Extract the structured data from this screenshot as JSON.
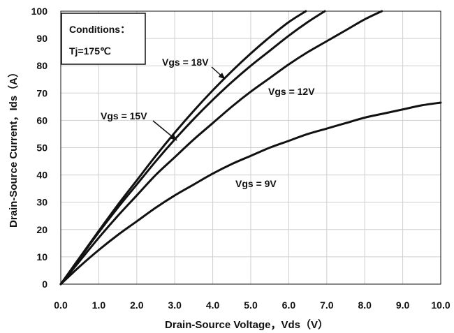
{
  "chart_data": {
    "type": "line",
    "xlabel": "Drain-Source Voltage，Vds（V）",
    "ylabel": "Drain-Source Current，Ids（A）",
    "xlim": [
      0,
      10
    ],
    "ylim": [
      0,
      100
    ],
    "xticks": [
      "0.0",
      "1.0",
      "2.0",
      "3.0",
      "4.0",
      "5.0",
      "6.0",
      "7.0",
      "8.0",
      "9.0",
      "10.0"
    ],
    "yticks": [
      "0",
      "10",
      "20",
      "30",
      "40",
      "50",
      "60",
      "70",
      "80",
      "90",
      "100"
    ],
    "grid": true,
    "conditions": {
      "line1": "Conditions：",
      "line2": "Tj=175℃"
    },
    "series": [
      {
        "name": "Vgs = 9V",
        "x": [
          0,
          0.5,
          1,
          1.5,
          2,
          2.5,
          3,
          3.5,
          4,
          4.5,
          5,
          5.5,
          6,
          6.5,
          7,
          7.5,
          8,
          8.5,
          9,
          9.5,
          10
        ],
        "y": [
          0,
          6.5,
          12.5,
          18,
          23,
          28,
          32.5,
          36.5,
          40.5,
          44,
          47,
          50,
          52.5,
          55,
          57,
          59,
          61,
          62.5,
          64,
          65.5,
          66.5
        ]
      },
      {
        "name": "Vgs = 12V",
        "x": [
          0,
          0.5,
          1,
          1.5,
          2,
          2.5,
          3,
          3.5,
          4,
          4.5,
          5,
          5.5,
          6,
          6.5,
          7,
          7.5,
          8,
          8.45
        ],
        "y": [
          0,
          8.5,
          17,
          25,
          32.5,
          40,
          46.5,
          53,
          59,
          65,
          70.5,
          75.5,
          80.5,
          85,
          89,
          93,
          97,
          100
        ]
      },
      {
        "name": "Vgs = 15V",
        "x": [
          0,
          0.5,
          1,
          1.5,
          2,
          2.5,
          3,
          3.5,
          4,
          4.5,
          5,
          5.5,
          6,
          6.5,
          6.95
        ],
        "y": [
          0,
          9.5,
          19,
          28,
          36.5,
          45,
          53,
          60.5,
          67.5,
          74,
          80,
          85.5,
          91,
          96,
          100
        ]
      },
      {
        "name": "Vgs = 18V",
        "x": [
          0,
          0.5,
          1,
          1.5,
          2,
          2.5,
          3,
          3.5,
          4,
          4.5,
          5,
          5.5,
          6,
          6.45
        ],
        "y": [
          0,
          9.8,
          19.5,
          29,
          38,
          47,
          55.5,
          63.5,
          71,
          78,
          84.5,
          90.5,
          96,
          100
        ]
      }
    ],
    "annotations": [
      {
        "text": "Vgs = 18V",
        "series": "Vgs = 18V",
        "arrow_to": [
          4.2,
          72.5
        ]
      },
      {
        "text": "Vgs = 15V",
        "series": "Vgs = 15V",
        "arrow_to": [
          3.05,
          52.5
        ]
      },
      {
        "text": "Vgs = 12V",
        "series": "Vgs = 12V"
      },
      {
        "text": "Vgs = 9V",
        "series": "Vgs = 9V"
      }
    ]
  }
}
